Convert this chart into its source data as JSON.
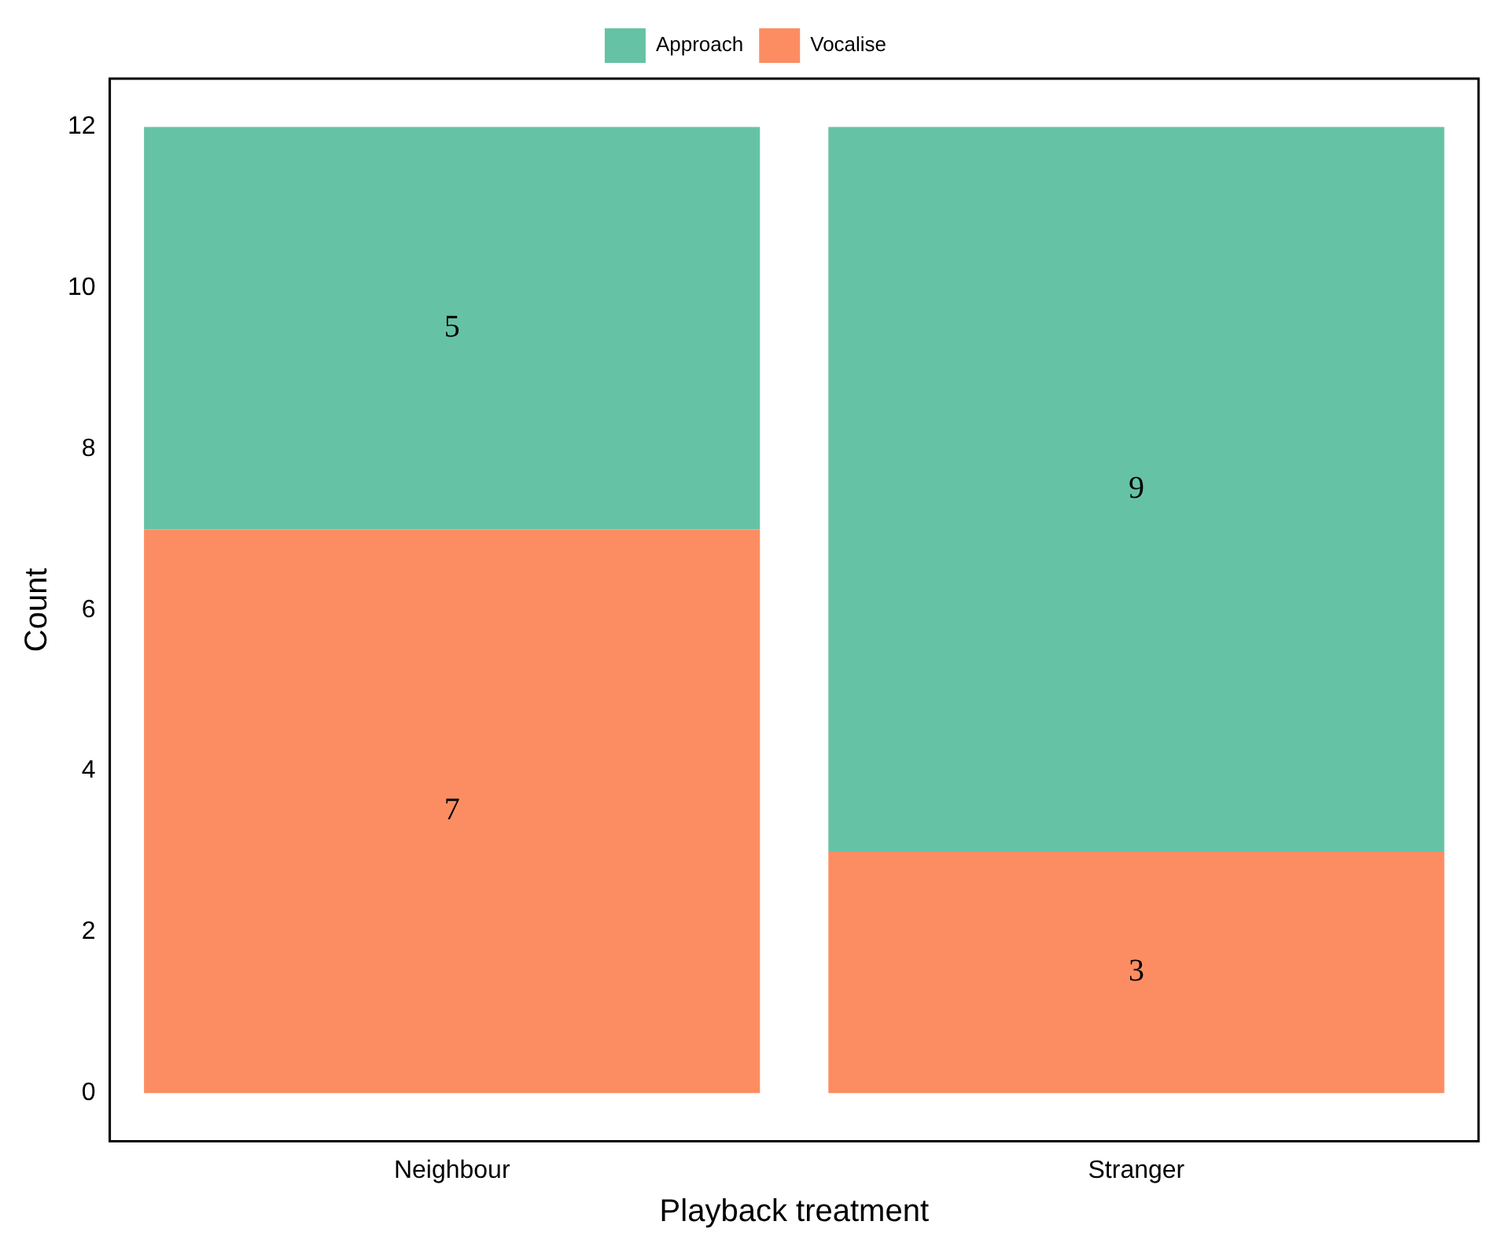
{
  "chart_data": {
    "type": "bar",
    "stacked": true,
    "xlabel": "Playback treatment",
    "ylabel": "Count",
    "categories": [
      "Neighbour",
      "Stranger"
    ],
    "series": [
      {
        "name": "Vocalise",
        "color": "#fc8d62",
        "values": [
          7,
          3
        ]
      },
      {
        "name": "Approach",
        "color": "#66c2a5",
        "values": [
          5,
          9
        ]
      }
    ],
    "ylim": [
      -0.6,
      12.6
    ],
    "yticks": [
      0,
      2,
      4,
      6,
      8,
      10,
      12
    ],
    "grid": false,
    "legend": "top",
    "data_labels": true
  }
}
